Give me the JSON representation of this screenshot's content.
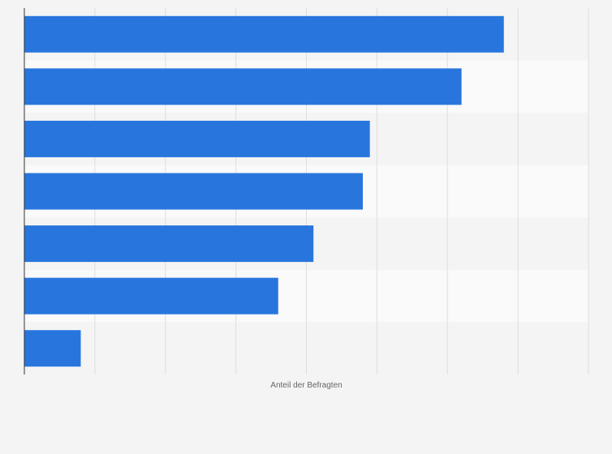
{
  "chart_data": {
    "type": "bar",
    "orientation": "horizontal",
    "categories": [
      "",
      "",
      "",
      "",
      "",
      "",
      ""
    ],
    "values": [
      68,
      62,
      49,
      48,
      41,
      36,
      8
    ],
    "xlabel": "Anteil der Befragten",
    "ylabel": "",
    "xlim": [
      0,
      80
    ],
    "grid": true,
    "bar_color": "#2876dd",
    "band_colors": [
      "#f4f4f4",
      "#fafafa"
    ],
    "gridline_color": "#dedede",
    "axis_color": "#333333"
  }
}
